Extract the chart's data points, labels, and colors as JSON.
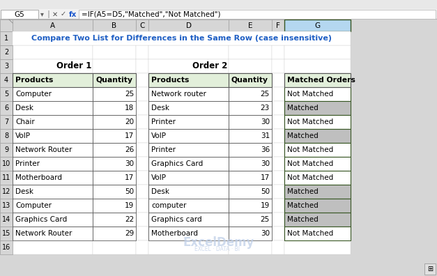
{
  "title": "Compare Two List for Differences in the Same Row (case insensitive)",
  "formula_bar_text": "=IF(A5=D5,\"Matched\",\"Not Matched\")",
  "cell_ref": "G5",
  "col_headers": [
    "A",
    "B",
    "C",
    "D",
    "E",
    "F",
    "G"
  ],
  "order1_label": "Order 1",
  "order2_label": "Order 2",
  "order1_headers": [
    "Products",
    "Quantity"
  ],
  "order2_headers": [
    "Products",
    "Quantity"
  ],
  "matched_header": "Matched Orders",
  "order1_products": [
    "Computer",
    "Desk",
    "Chair",
    "VoIP",
    "Network Router",
    "Printer",
    "Motherboard",
    "Desk",
    "Computer",
    "Graphics Card",
    "Network Router"
  ],
  "order1_qty": [
    25,
    18,
    20,
    17,
    26,
    30,
    17,
    50,
    19,
    22,
    29
  ],
  "order2_products": [
    "Network router",
    "Desk",
    "Printer",
    "VoIP",
    "Printer",
    "Graphics Card",
    "VoIP",
    "Desk",
    "computer",
    "Graphics card",
    "Motherboard"
  ],
  "order2_qty": [
    25,
    23,
    30,
    31,
    36,
    30,
    17,
    50,
    19,
    25,
    30
  ],
  "matched_results": [
    "Not Matched",
    "Matched",
    "Not Matched",
    "Matched",
    "Not Matched",
    "Not Matched",
    "Not Matched",
    "Matched",
    "Matched",
    "Matched",
    "Not Matched"
  ],
  "bg_color": "#d6d6d6",
  "sheet_bg": "#ffffff",
  "header_bg": "#e2efda",
  "col_header_bg": "#d6d6d6",
  "row_header_bg": "#d6d6d6",
  "title_color": "#1f5fc4",
  "selected_col_header_bg": "#b4d7f0",
  "matched_bg": "#bfbfbf",
  "watermark_color": "#c0cfe8",
  "formula_bar_bg": "#f2f2f2",
  "green_border": "#375623",
  "table_border": "#595959",
  "thin_border": "#d0d0d0"
}
